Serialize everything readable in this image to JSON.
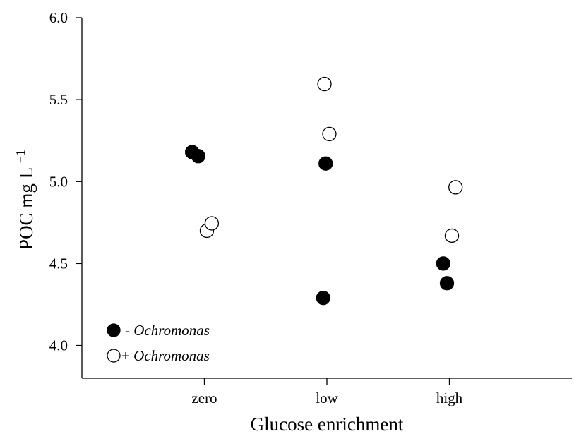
{
  "chart_data": {
    "type": "scatter",
    "xlabel": "Glucose enrichment",
    "ylabel_main": "POC mg L",
    "ylabel_sup": "−1",
    "categories": [
      "zero",
      "low",
      "high"
    ],
    "ylim": [
      3.8,
      6.0
    ],
    "yticks": [
      "4.0",
      "4.5",
      "5.0",
      "5.5",
      "6.0"
    ],
    "grid": false,
    "legend_position": "bottom-left",
    "series": [
      {
        "name": "Ochromonas",
        "prefix": "- ",
        "marker": "filled",
        "color": "#000000",
        "points": [
          {
            "category": "zero",
            "offset": -0.1,
            "y": 5.18
          },
          {
            "category": "zero",
            "offset": -0.05,
            "y": 5.155
          },
          {
            "category": "low",
            "offset": -0.03,
            "y": 4.29
          },
          {
            "category": "low",
            "offset": -0.01,
            "y": 5.11
          },
          {
            "category": "high",
            "offset": -0.05,
            "y": 4.5
          },
          {
            "category": "high",
            "offset": -0.02,
            "y": 4.38
          }
        ]
      },
      {
        "name": "Ochromonas",
        "prefix": "+ ",
        "marker": "hollow",
        "color": "#000000",
        "points": [
          {
            "category": "zero",
            "offset": 0.02,
            "y": 4.7
          },
          {
            "category": "zero",
            "offset": 0.06,
            "y": 4.745
          },
          {
            "category": "low",
            "offset": -0.02,
            "y": 5.595
          },
          {
            "category": "low",
            "offset": 0.02,
            "y": 5.29
          },
          {
            "category": "high",
            "offset": 0.02,
            "y": 4.67
          },
          {
            "category": "high",
            "offset": 0.05,
            "y": 4.965
          }
        ]
      }
    ]
  }
}
